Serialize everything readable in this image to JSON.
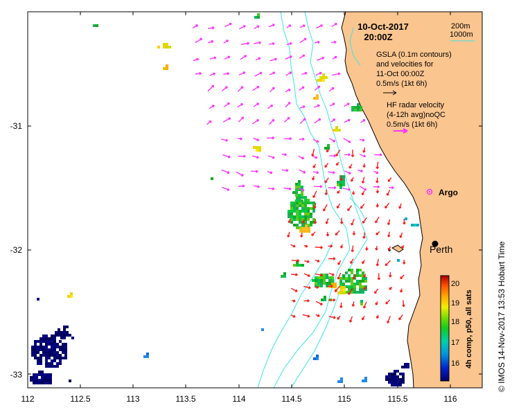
{
  "header": {
    "date": "10-Oct-2017",
    "time": "20:00Z"
  },
  "contour_legend": {
    "depth_1": "200m",
    "depth_2": "1000m",
    "color": "#39e5e5"
  },
  "gsla_legend": {
    "line1": "GSLA (0.1m contours)",
    "line2": "and velocities for",
    "line3": "11-Oct 00:00Z",
    "line4": "0.5m/s (1kt 6h)",
    "arrow_color": "#000000"
  },
  "hf_legend": {
    "line1": "HF radar velocity",
    "line2": "(4-12h avg)noQC",
    "line3": "0.5m/s (1kt 6h)",
    "arrow_color": "#ff33ff"
  },
  "places": {
    "argo": "Argo",
    "city": "Perth"
  },
  "credit": "© IMOS 14-Nov-2017 13:53 Hobart Time",
  "colorbar": {
    "title": "4h comp, p50, all sats",
    "ticks": [
      "16",
      "17",
      "18",
      "19",
      "20"
    ],
    "min": 15.5,
    "max": 20.5
  },
  "axes": {
    "x_ticks": [
      "112",
      "112.5",
      "113",
      "113.5",
      "114",
      "114.5",
      "115",
      "115.5",
      "116"
    ],
    "y_ticks": [
      "-31",
      "-32",
      "-33"
    ],
    "lon_range": [
      112,
      116.3
    ],
    "lat_range": [
      -33.1,
      -30.1
    ]
  },
  "colors": {
    "land": "#fbc58f",
    "radar_arrow": "#ff33ff",
    "model_arrow": "#ff1a1a",
    "contour": "#39e5e5"
  }
}
